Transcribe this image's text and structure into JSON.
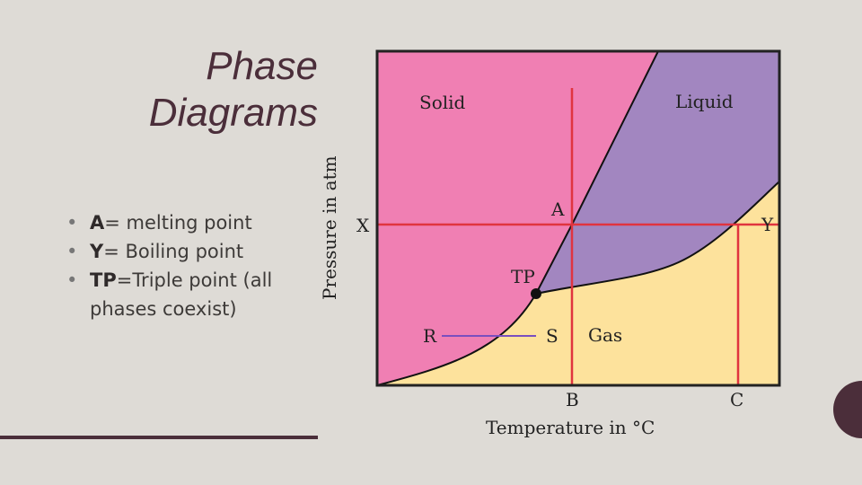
{
  "title": {
    "line1": "Phase",
    "line2": "Diagrams"
  },
  "bullets": [
    {
      "key": "A",
      "text": "= melting point"
    },
    {
      "key": "Y",
      "text": "= Boiling point"
    },
    {
      "key": "TP",
      "text": "=Triple point (all phases coexist)"
    }
  ],
  "diagram": {
    "regions": {
      "solid": "Solid",
      "liquid": "Liquid",
      "gas": "Gas"
    },
    "points": {
      "A": "A",
      "X": "X",
      "Y": "Y",
      "TP": "TP",
      "R": "R",
      "S": "S",
      "B": "B",
      "C": "C"
    },
    "axes": {
      "x_label": "Temperature in °C",
      "y_label": "Pressure in atm"
    },
    "colors": {
      "solid": "#f07fb3",
      "liquid": "#a286c0",
      "gas": "#fde29c",
      "guide_lines": "#e0343f",
      "sublimation_segment": "#7a4fbf",
      "accent": "#4b2e3a"
    }
  }
}
